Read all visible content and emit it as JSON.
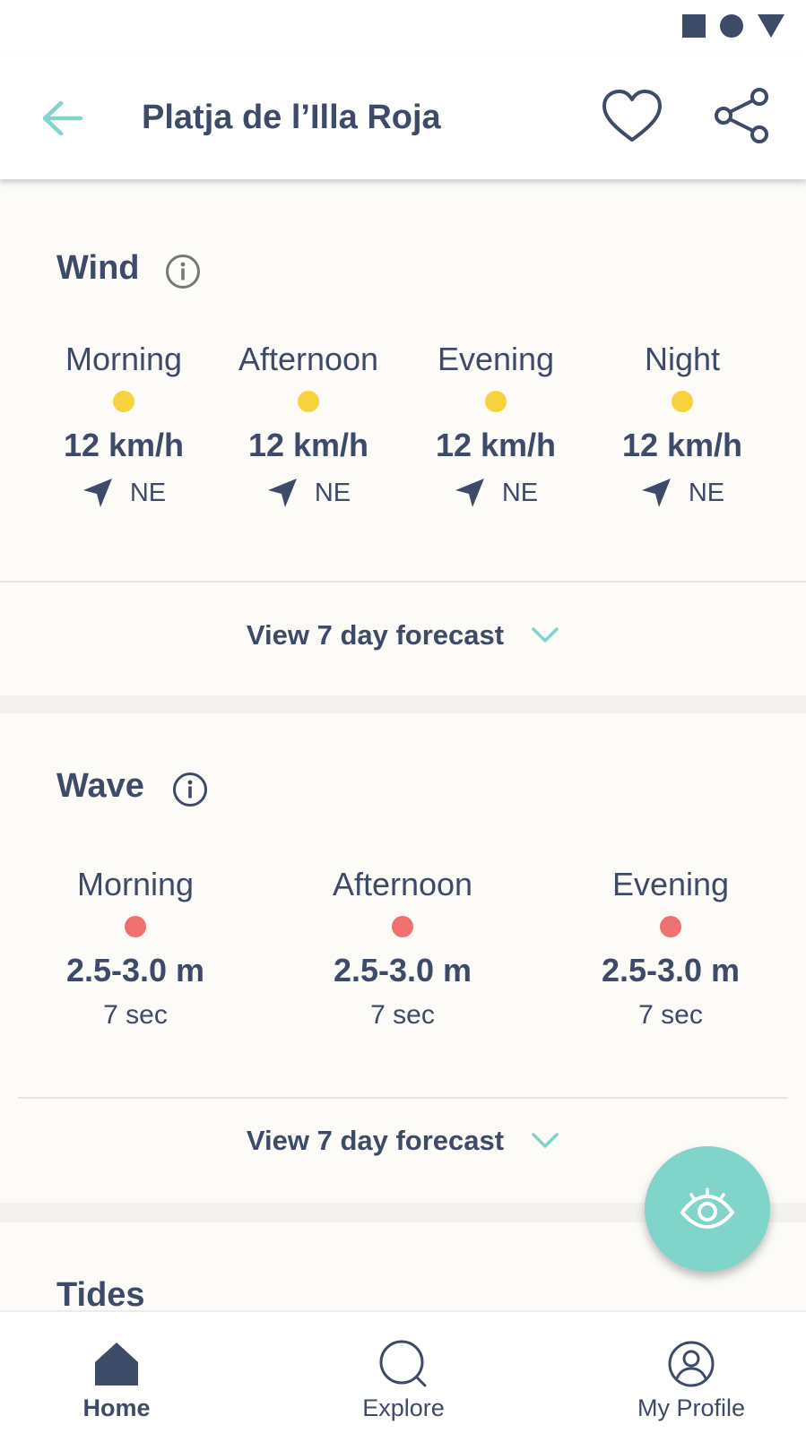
{
  "header": {
    "title": "Platja de l’Illa Roja"
  },
  "wind": {
    "title": "Wind",
    "items": [
      {
        "period": "Morning",
        "speed": "12 km/h",
        "direction": "NE"
      },
      {
        "period": "Afternoon",
        "speed": "12 km/h",
        "direction": "NE"
      },
      {
        "period": "Evening",
        "speed": "12 km/h",
        "direction": "NE"
      },
      {
        "period": "Night",
        "speed": "12 km/h",
        "direction": "NE"
      }
    ],
    "level_color": "#f7d33e",
    "forecast_label": "View 7 day forecast"
  },
  "wave": {
    "title": "Wave",
    "items": [
      {
        "period": "Morning",
        "height": "2.5-3.0 m",
        "interval": "7 sec"
      },
      {
        "period": "Afternoon",
        "height": "2.5-3.0 m",
        "interval": "7 sec"
      },
      {
        "period": "Evening",
        "height": "2.5-3.0 m",
        "interval": "7 sec"
      }
    ],
    "level_color": "#f07070",
    "forecast_label": "View 7 day forecast"
  },
  "tides": {
    "title": "Tides"
  },
  "nav": {
    "items": [
      {
        "label": "Home",
        "icon": "home-icon",
        "active": true
      },
      {
        "label": "Explore",
        "icon": "search-icon",
        "active": false
      },
      {
        "label": "My Profile",
        "icon": "profile-icon",
        "active": false
      }
    ]
  },
  "colors": {
    "accent": "#80d4c9",
    "text": "#3d4a68"
  }
}
